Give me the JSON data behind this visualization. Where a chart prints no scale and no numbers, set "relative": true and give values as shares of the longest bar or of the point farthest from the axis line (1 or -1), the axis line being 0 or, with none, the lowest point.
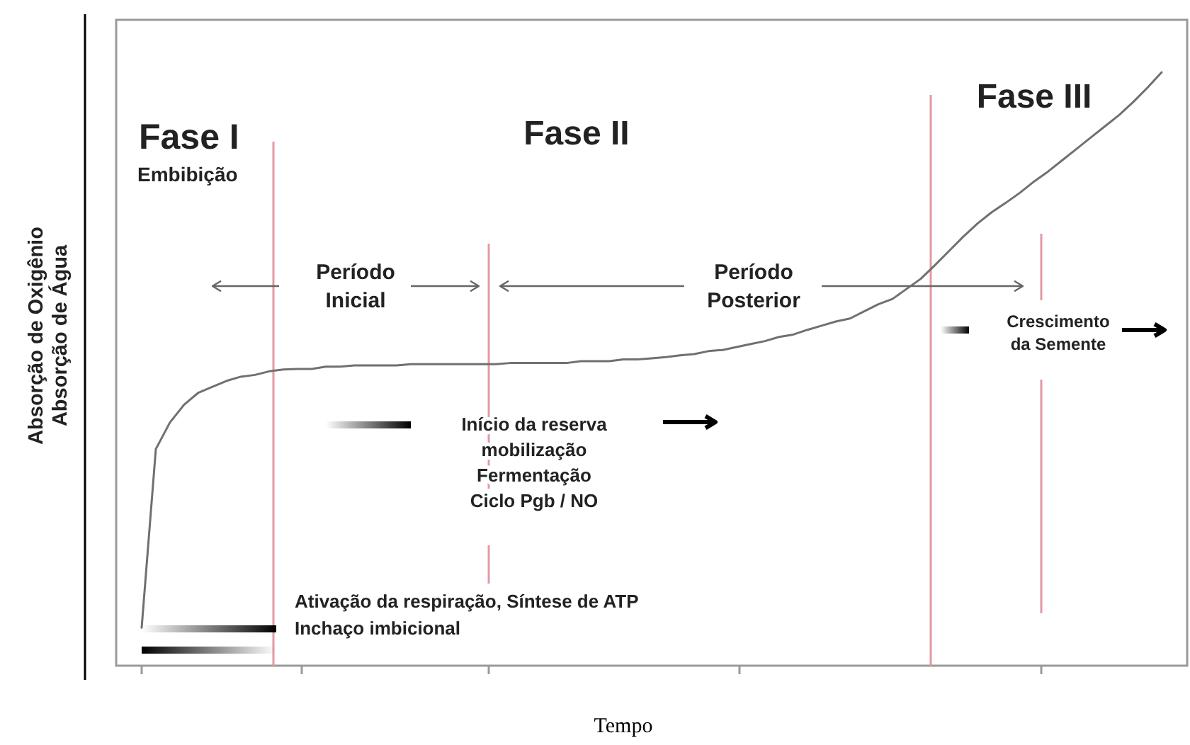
{
  "chart_data": {
    "type": "line",
    "relative": true,
    "xlabel": "Tempo",
    "ylabel": "Absorção de Oxigênio\nAbsorção de Água",
    "categories": [
      null,
      null,
      null,
      null,
      null,
      null,
      null,
      null,
      null,
      null,
      null,
      null,
      null,
      null,
      null,
      null,
      null,
      null,
      null,
      null,
      null,
      null,
      null,
      null,
      null,
      null,
      null,
      null,
      null,
      null,
      null,
      null,
      null,
      null,
      null,
      null,
      null,
      null,
      null,
      null,
      null,
      null,
      null,
      null,
      null,
      null,
      null,
      null,
      null,
      null,
      null,
      null,
      null,
      null,
      null,
      null,
      null,
      null,
      null,
      null,
      null,
      null,
      null,
      null,
      null,
      null,
      null,
      null,
      null,
      null,
      null,
      null,
      null
    ],
    "marker": "none",
    "line_style": "solid",
    "series": [
      {
        "color": "#707070",
        "values": [
          0.064,
          0.365,
          0.41,
          0.44,
          0.46,
          0.47,
          0.48,
          0.487,
          0.49,
          0.496,
          0.499,
          0.5,
          0.5,
          0.504,
          0.504,
          0.506,
          0.506,
          0.506,
          0.506,
          0.508,
          0.508,
          0.508,
          0.508,
          0.508,
          0.508,
          0.508,
          0.51,
          0.51,
          0.51,
          0.51,
          0.51,
          0.513,
          0.513,
          0.513,
          0.516,
          0.516,
          0.518,
          0.52,
          0.523,
          0.525,
          0.53,
          0.532,
          0.537,
          0.542,
          0.547,
          0.554,
          0.558,
          0.566,
          0.573,
          0.58,
          0.585,
          0.597,
          0.609,
          0.618,
          0.635,
          0.652,
          0.675,
          0.699,
          0.723,
          0.745,
          0.764,
          0.78,
          0.797,
          0.816,
          0.833,
          0.852,
          0.871,
          0.89,
          0.909,
          0.928,
          0.95,
          0.974,
          1
        ]
      }
    ],
    "annotations": [
      "Fase I",
      "Embibição",
      "Fase II",
      "Fase III",
      "Período\nInicial",
      "Período\nPosterior",
      "Início da reserva\nmobilização\nFermentação\nCiclo Pgb / NO",
      "Crescimento\nda Semente",
      "Ativação da respiração, Síntese de ATP",
      "Inchaço imbicional"
    ]
  }
}
